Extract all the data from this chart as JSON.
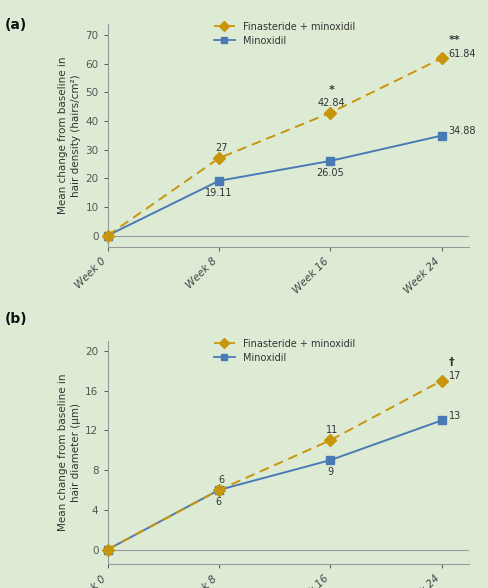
{
  "background_color": "#ddebd5",
  "weeks": [
    0,
    8,
    16,
    24
  ],
  "week_labels": [
    "Week 0",
    "Week 8",
    "Week 16",
    "Week 24"
  ],
  "panel_a": {
    "title": "(a)",
    "ylabel": "Mean change from baseline in\nhair density (hairs/cm²)",
    "finasteride_values": [
      0,
      27,
      42.84,
      61.84
    ],
    "minoxidil_values": [
      0,
      19.11,
      26.05,
      34.88
    ],
    "finasteride_labels": [
      "",
      "27",
      "42.84",
      "61.84"
    ],
    "minoxidil_labels": [
      "",
      "19.11",
      "26.05",
      "34.88"
    ],
    "finasteride_sig": [
      "",
      "",
      "*",
      "**"
    ],
    "minoxidil_sig": [
      "",
      "",
      "",
      ""
    ],
    "ylim": [
      -4,
      74
    ],
    "yticks": [
      0,
      10,
      20,
      30,
      40,
      50,
      60,
      70
    ]
  },
  "panel_b": {
    "title": "(b)",
    "ylabel": "Mean change from baseline in\nhair diameter (µm)",
    "finasteride_values": [
      0,
      6,
      11,
      17
    ],
    "minoxidil_values": [
      0,
      6,
      9,
      13
    ],
    "finasteride_labels": [
      "",
      "6",
      "11",
      "17"
    ],
    "minoxidil_labels": [
      "",
      "6",
      "9",
      "13"
    ],
    "finasteride_sig": [
      "",
      "",
      "",
      "†"
    ],
    "minoxidil_sig": [
      "",
      "",
      "",
      ""
    ],
    "ylim": [
      -1.5,
      21
    ],
    "yticks": [
      0,
      4,
      8,
      12,
      16,
      20
    ]
  },
  "finasteride_color": "#c8960c",
  "minoxidil_color": "#4a7ab5",
  "line_color_mino": "#5588aa",
  "legend_finasteride": "Finasteride + minoxidil",
  "legend_minoxidil": "Minoxidil"
}
